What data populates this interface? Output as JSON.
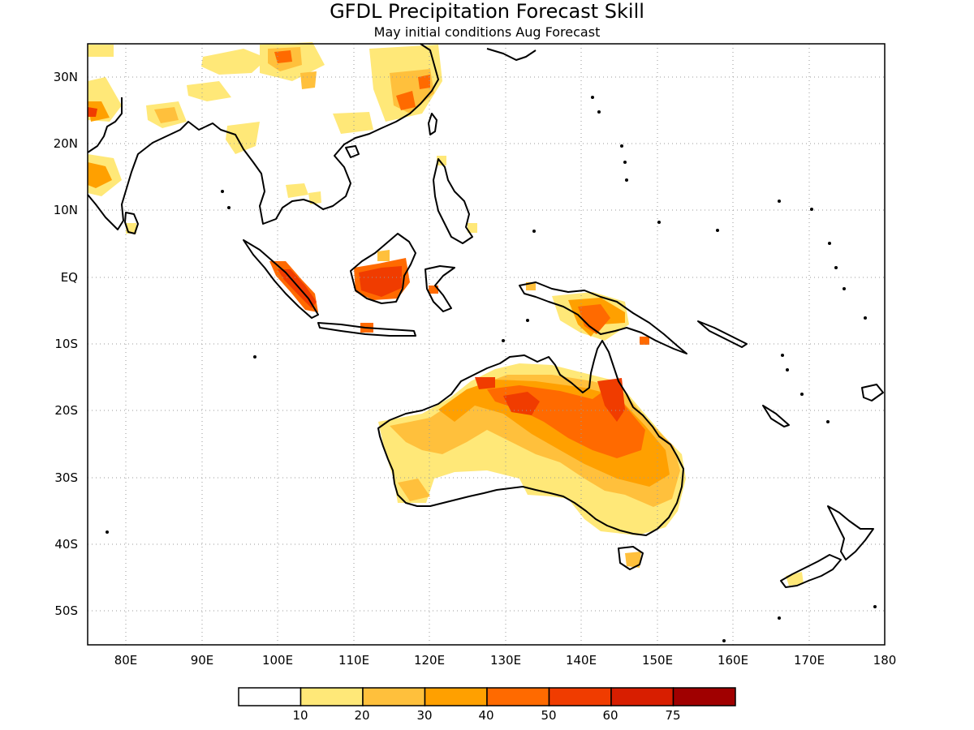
{
  "title": "GFDL Precipitation Forecast Skill",
  "subtitle": "May initial conditions  Aug Forecast",
  "x_ticks": [
    "80E",
    "90E",
    "100E",
    "110E",
    "120E",
    "130E",
    "140E",
    "150E",
    "160E",
    "170E",
    "180"
  ],
  "y_ticks": [
    "30N",
    "20N",
    "10N",
    "EQ",
    "10S",
    "20S",
    "30S",
    "40S",
    "50S"
  ],
  "colorbar": {
    "labels": [
      "10",
      "20",
      "30",
      "40",
      "50",
      "60",
      "75"
    ],
    "colors": [
      "#ffffff",
      "#ffe878",
      "#ffc03c",
      "#ffa000",
      "#ff6a00",
      "#f03c00",
      "#d81e00",
      "#a00000"
    ]
  },
  "map": {
    "lon_range": [
      75,
      180
    ],
    "lat_range": [
      -55,
      35
    ],
    "grid": "dotted"
  }
}
